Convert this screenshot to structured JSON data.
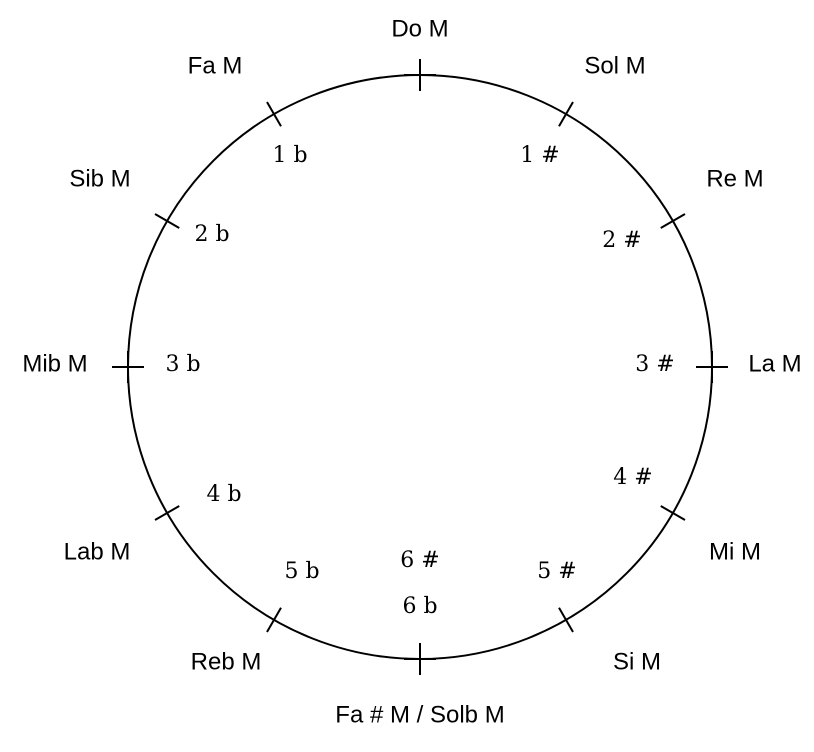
{
  "outer_labels": [
    "Do M",
    "Sol M",
    "Re M",
    "La M",
    "Mi M",
    "Si M",
    "Fa # M / Solb M",
    "Reb M",
    "Lab M",
    "Mib M",
    "Sib M",
    "Fa M"
  ],
  "inner_labels": [
    "1 #",
    "2 #",
    "3 #",
    "4 #",
    "5 #",
    "6 #",
    "6 b",
    "5 b",
    "4 b",
    "3 b",
    "2 b",
    "1 b"
  ]
}
